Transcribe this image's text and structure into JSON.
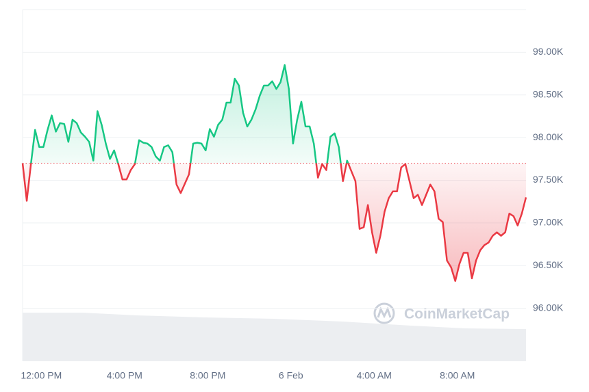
{
  "chart_data": {
    "type": "line",
    "watermark": "CoinMarketCap",
    "x": [
      -0.9,
      -0.7,
      -0.5,
      -0.3,
      -0.1,
      0.1,
      0.3,
      0.5,
      0.7,
      0.9,
      1.1,
      1.3,
      1.5,
      1.7,
      1.9,
      2.1,
      2.3,
      2.5,
      2.7,
      2.9,
      3.1,
      3.3,
      3.5,
      3.7,
      3.9,
      4.1,
      4.3,
      4.5,
      4.7,
      4.9,
      5.1,
      5.3,
      5.5,
      5.7,
      5.9,
      6.1,
      6.3,
      6.5,
      6.7,
      6.9,
      7.1,
      7.3,
      7.5,
      7.7,
      7.9,
      8.1,
      8.3,
      8.5,
      8.7,
      8.9,
      9.1,
      9.3,
      9.5,
      9.7,
      9.9,
      10.1,
      10.3,
      10.5,
      10.7,
      10.9,
      11.1,
      11.3,
      11.5,
      11.7,
      11.9,
      12.1,
      12.3,
      12.5,
      12.7,
      12.9,
      13.1,
      13.3,
      13.5,
      13.7,
      13.9,
      14.1,
      14.3,
      14.5,
      14.7,
      14.9,
      15.1,
      15.3,
      15.5,
      15.7,
      15.9,
      16.1,
      16.3,
      16.5,
      16.7,
      16.9,
      17.1,
      17.3,
      17.5,
      17.7,
      17.9,
      18.1,
      18.3,
      18.5,
      18.7,
      18.9,
      19.1,
      19.3,
      19.5,
      19.7,
      19.9,
      20.1,
      20.3,
      20.5,
      20.7,
      20.9,
      21.1,
      21.3,
      21.5,
      21.7,
      21.9,
      22.1,
      22.3,
      22.5,
      22.7,
      22.9,
      23.1,
      23.3
    ],
    "values": [
      97.7,
      97.26,
      97.69,
      98.09,
      97.89,
      97.89,
      98.09,
      98.26,
      98.07,
      98.17,
      98.16,
      97.95,
      98.21,
      98.17,
      98.06,
      98.01,
      97.95,
      97.73,
      98.31,
      98.15,
      97.93,
      97.75,
      97.85,
      97.69,
      97.51,
      97.51,
      97.62,
      97.69,
      97.97,
      97.94,
      97.93,
      97.89,
      97.78,
      97.73,
      97.89,
      97.91,
      97.83,
      97.45,
      97.35,
      97.46,
      97.57,
      97.93,
      97.94,
      97.93,
      97.85,
      98.1,
      98.01,
      98.15,
      98.21,
      98.41,
      98.41,
      98.69,
      98.61,
      98.29,
      98.13,
      98.21,
      98.33,
      98.49,
      98.61,
      98.61,
      98.66,
      98.57,
      98.65,
      98.85,
      98.57,
      97.93,
      98.21,
      98.42,
      98.13,
      98.13,
      97.93,
      97.53,
      97.69,
      97.62,
      98.01,
      98.05,
      97.89,
      97.49,
      97.73,
      97.61,
      97.49,
      96.93,
      96.95,
      97.21,
      96.89,
      96.65,
      96.85,
      97.13,
      97.29,
      97.37,
      97.37,
      97.65,
      97.69,
      97.49,
      97.29,
      97.33,
      97.21,
      97.33,
      97.45,
      97.37,
      97.05,
      97.01,
      96.56,
      96.48,
      96.32,
      96.52,
      96.65,
      96.65,
      96.35,
      96.56,
      96.68,
      96.74,
      96.77,
      96.85,
      96.89,
      96.85,
      96.89,
      97.11,
      97.08,
      96.97,
      97.11,
      97.3
    ],
    "baseline": 97.7,
    "color_up": "#16c784",
    "color_down": "#ea3943",
    "xlim": [
      -0.9,
      23.3
    ],
    "xticks": [
      {
        "value": 0,
        "label": "12:00 PM"
      },
      {
        "value": 4,
        "label": "4:00 PM"
      },
      {
        "value": 8,
        "label": "8:00 PM"
      },
      {
        "value": 12,
        "label": "6 Feb"
      },
      {
        "value": 16,
        "label": "4:00 AM"
      },
      {
        "value": 20,
        "label": "8:00 AM"
      }
    ],
    "ylim": [
      95.38,
      99.5
    ],
    "yticks": [
      {
        "value": 96,
        "label": "96.00K"
      },
      {
        "value": 96.5,
        "label": "96.50K"
      },
      {
        "value": 97,
        "label": "97.00K"
      },
      {
        "value": 97.5,
        "label": "97.50K"
      },
      {
        "value": 98,
        "label": "98.00K"
      },
      {
        "value": 98.5,
        "label": "98.50K"
      },
      {
        "value": 99,
        "label": "99.00K"
      }
    ],
    "grid": true
  }
}
